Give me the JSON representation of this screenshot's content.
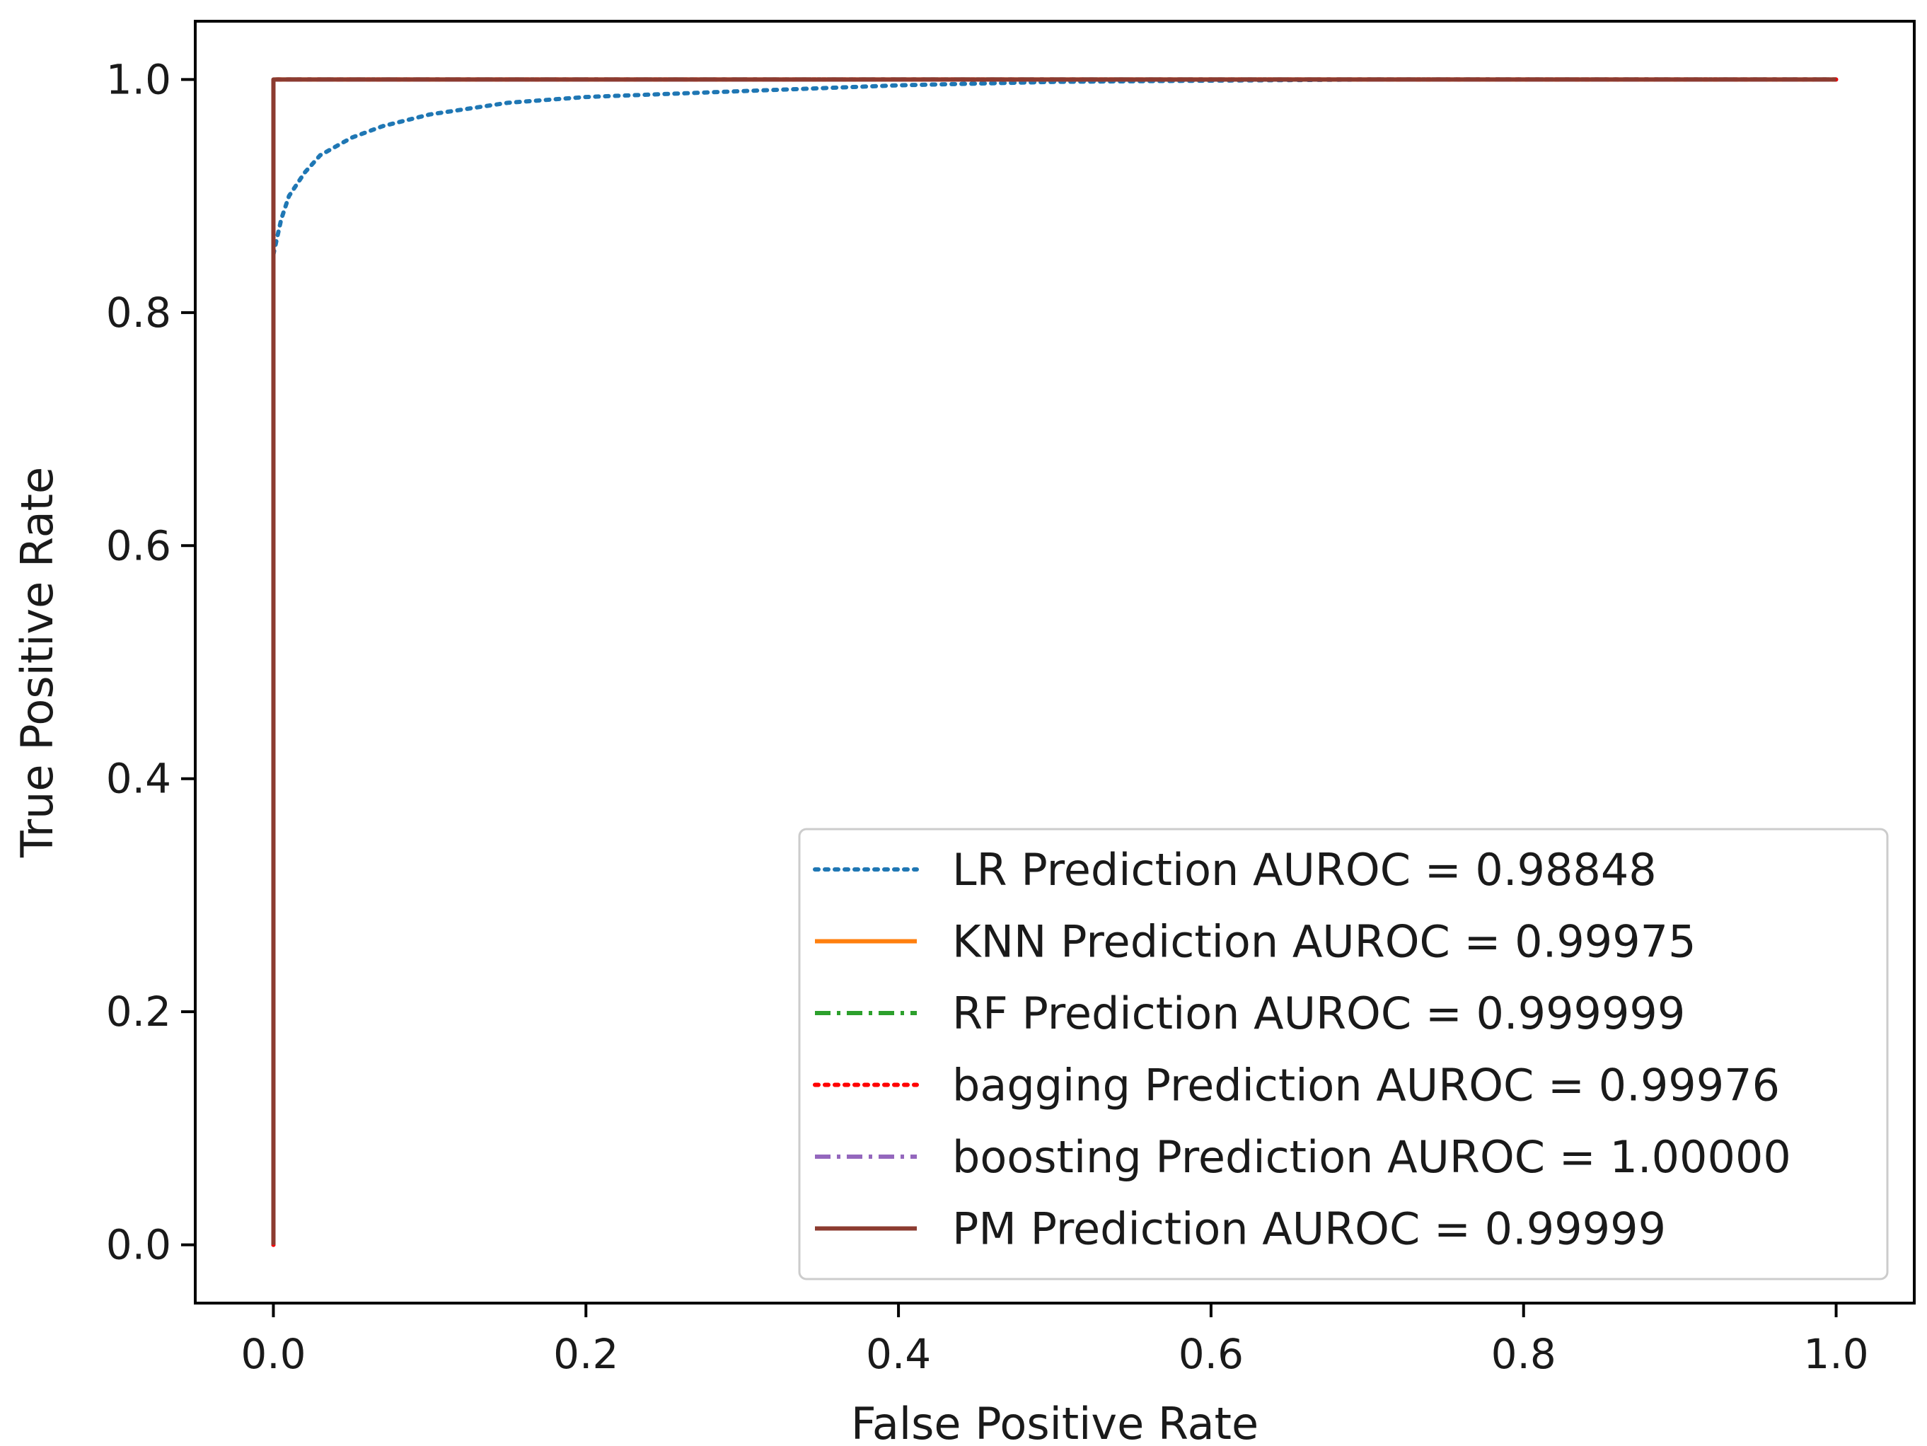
{
  "chart_data": {
    "type": "line",
    "title": "",
    "xlabel": "False Positive Rate",
    "ylabel": "True Positive Rate",
    "xlim": [
      -0.05,
      1.05
    ],
    "ylim": [
      -0.05,
      1.05
    ],
    "xticks": [
      0.0,
      0.2,
      0.4,
      0.6,
      0.8,
      1.0
    ],
    "yticks": [
      0.0,
      0.2,
      0.4,
      0.6,
      0.8,
      1.0
    ],
    "xtick_labels": [
      "0.0",
      "0.2",
      "0.4",
      "0.6",
      "0.8",
      "1.0"
    ],
    "ytick_labels": [
      "0.0",
      "0.2",
      "0.4",
      "0.6",
      "0.8",
      "1.0"
    ],
    "grid": false,
    "legend_position": "lower-right",
    "series": [
      {
        "name": "LR Prediction AUROC = 0.98848",
        "color": "#1f77b4",
        "style": "dotted",
        "x": [
          0.0,
          0.0,
          0.005,
          0.01,
          0.02,
          0.03,
          0.05,
          0.07,
          0.1,
          0.15,
          0.2,
          0.3,
          0.4,
          0.5,
          0.6,
          0.7,
          0.8,
          1.0
        ],
        "y": [
          0.0,
          0.85,
          0.88,
          0.9,
          0.92,
          0.935,
          0.95,
          0.96,
          0.97,
          0.98,
          0.985,
          0.99,
          0.995,
          0.998,
          0.999,
          1.0,
          1.0,
          1.0
        ]
      },
      {
        "name": "KNN Prediction AUROC = 0.99975",
        "color": "#ff7f0e",
        "style": "solid",
        "x": [
          0.0,
          0.0,
          0.001,
          1.0
        ],
        "y": [
          0.0,
          0.999,
          1.0,
          1.0
        ]
      },
      {
        "name": "RF Prediction AUROC = 0.999999",
        "color": "#2ca02c",
        "style": "dashdot",
        "x": [
          0.0,
          0.0,
          1.0
        ],
        "y": [
          0.0,
          1.0,
          1.0
        ]
      },
      {
        "name": "bagging Prediction AUROC = 0.99976",
        "color": "#ff0000",
        "style": "dotted",
        "x": [
          0.0,
          0.0,
          0.001,
          1.0
        ],
        "y": [
          0.0,
          0.999,
          1.0,
          1.0
        ]
      },
      {
        "name": "boosting Prediction AUROC = 1.00000",
        "color": "#9467bd",
        "style": "dashdot",
        "x": [
          0.0,
          0.0,
          1.0
        ],
        "y": [
          0.0,
          1.0,
          1.0
        ]
      },
      {
        "name": "PM Prediction AUROC = 0.99999",
        "color": "#8c3b30",
        "style": "solid",
        "x": [
          0.0,
          0.0,
          1.0
        ],
        "y": [
          0.0,
          1.0,
          1.0
        ]
      }
    ]
  }
}
